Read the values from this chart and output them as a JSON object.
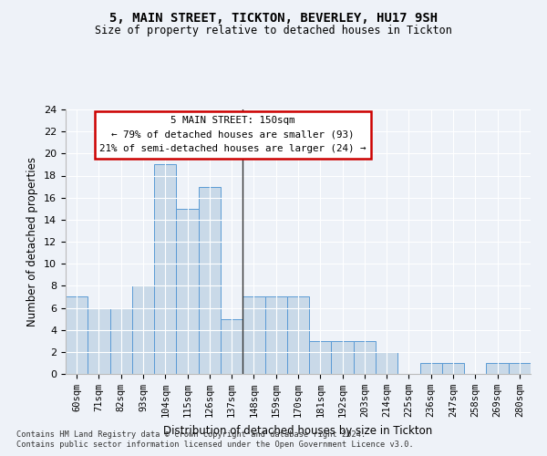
{
  "title1": "5, MAIN STREET, TICKTON, BEVERLEY, HU17 9SH",
  "title2": "Size of property relative to detached houses in Tickton",
  "xlabel": "Distribution of detached houses by size in Tickton",
  "ylabel": "Number of detached properties",
  "categories": [
    "60sqm",
    "71sqm",
    "82sqm",
    "93sqm",
    "104sqm",
    "115sqm",
    "126sqm",
    "137sqm",
    "148sqm",
    "159sqm",
    "170sqm",
    "181sqm",
    "192sqm",
    "203sqm",
    "214sqm",
    "225sqm",
    "236sqm",
    "247sqm",
    "258sqm",
    "269sqm",
    "280sqm"
  ],
  "values": [
    7,
    6,
    6,
    8,
    19,
    15,
    17,
    5,
    7,
    7,
    7,
    3,
    3,
    3,
    2,
    0,
    1,
    1,
    0,
    1,
    1
  ],
  "bar_color": "#c9d9e8",
  "bar_edge_color": "#5b9bd5",
  "vline_color": "#333333",
  "ylim": [
    0,
    24
  ],
  "yticks": [
    0,
    2,
    4,
    6,
    8,
    10,
    12,
    14,
    16,
    18,
    20,
    22,
    24
  ],
  "annotation_title": "5 MAIN STREET: 150sqm",
  "annotation_line1": "← 79% of detached houses are smaller (93)",
  "annotation_line2": "21% of semi-detached houses are larger (24) →",
  "box_color": "#ffffff",
  "box_edge_color": "#cc0000",
  "footnote1": "Contains HM Land Registry data © Crown copyright and database right 2024.",
  "footnote2": "Contains public sector information licensed under the Open Government Licence v3.0.",
  "bg_color": "#eef2f8",
  "plot_bg_color": "#eef2f8"
}
